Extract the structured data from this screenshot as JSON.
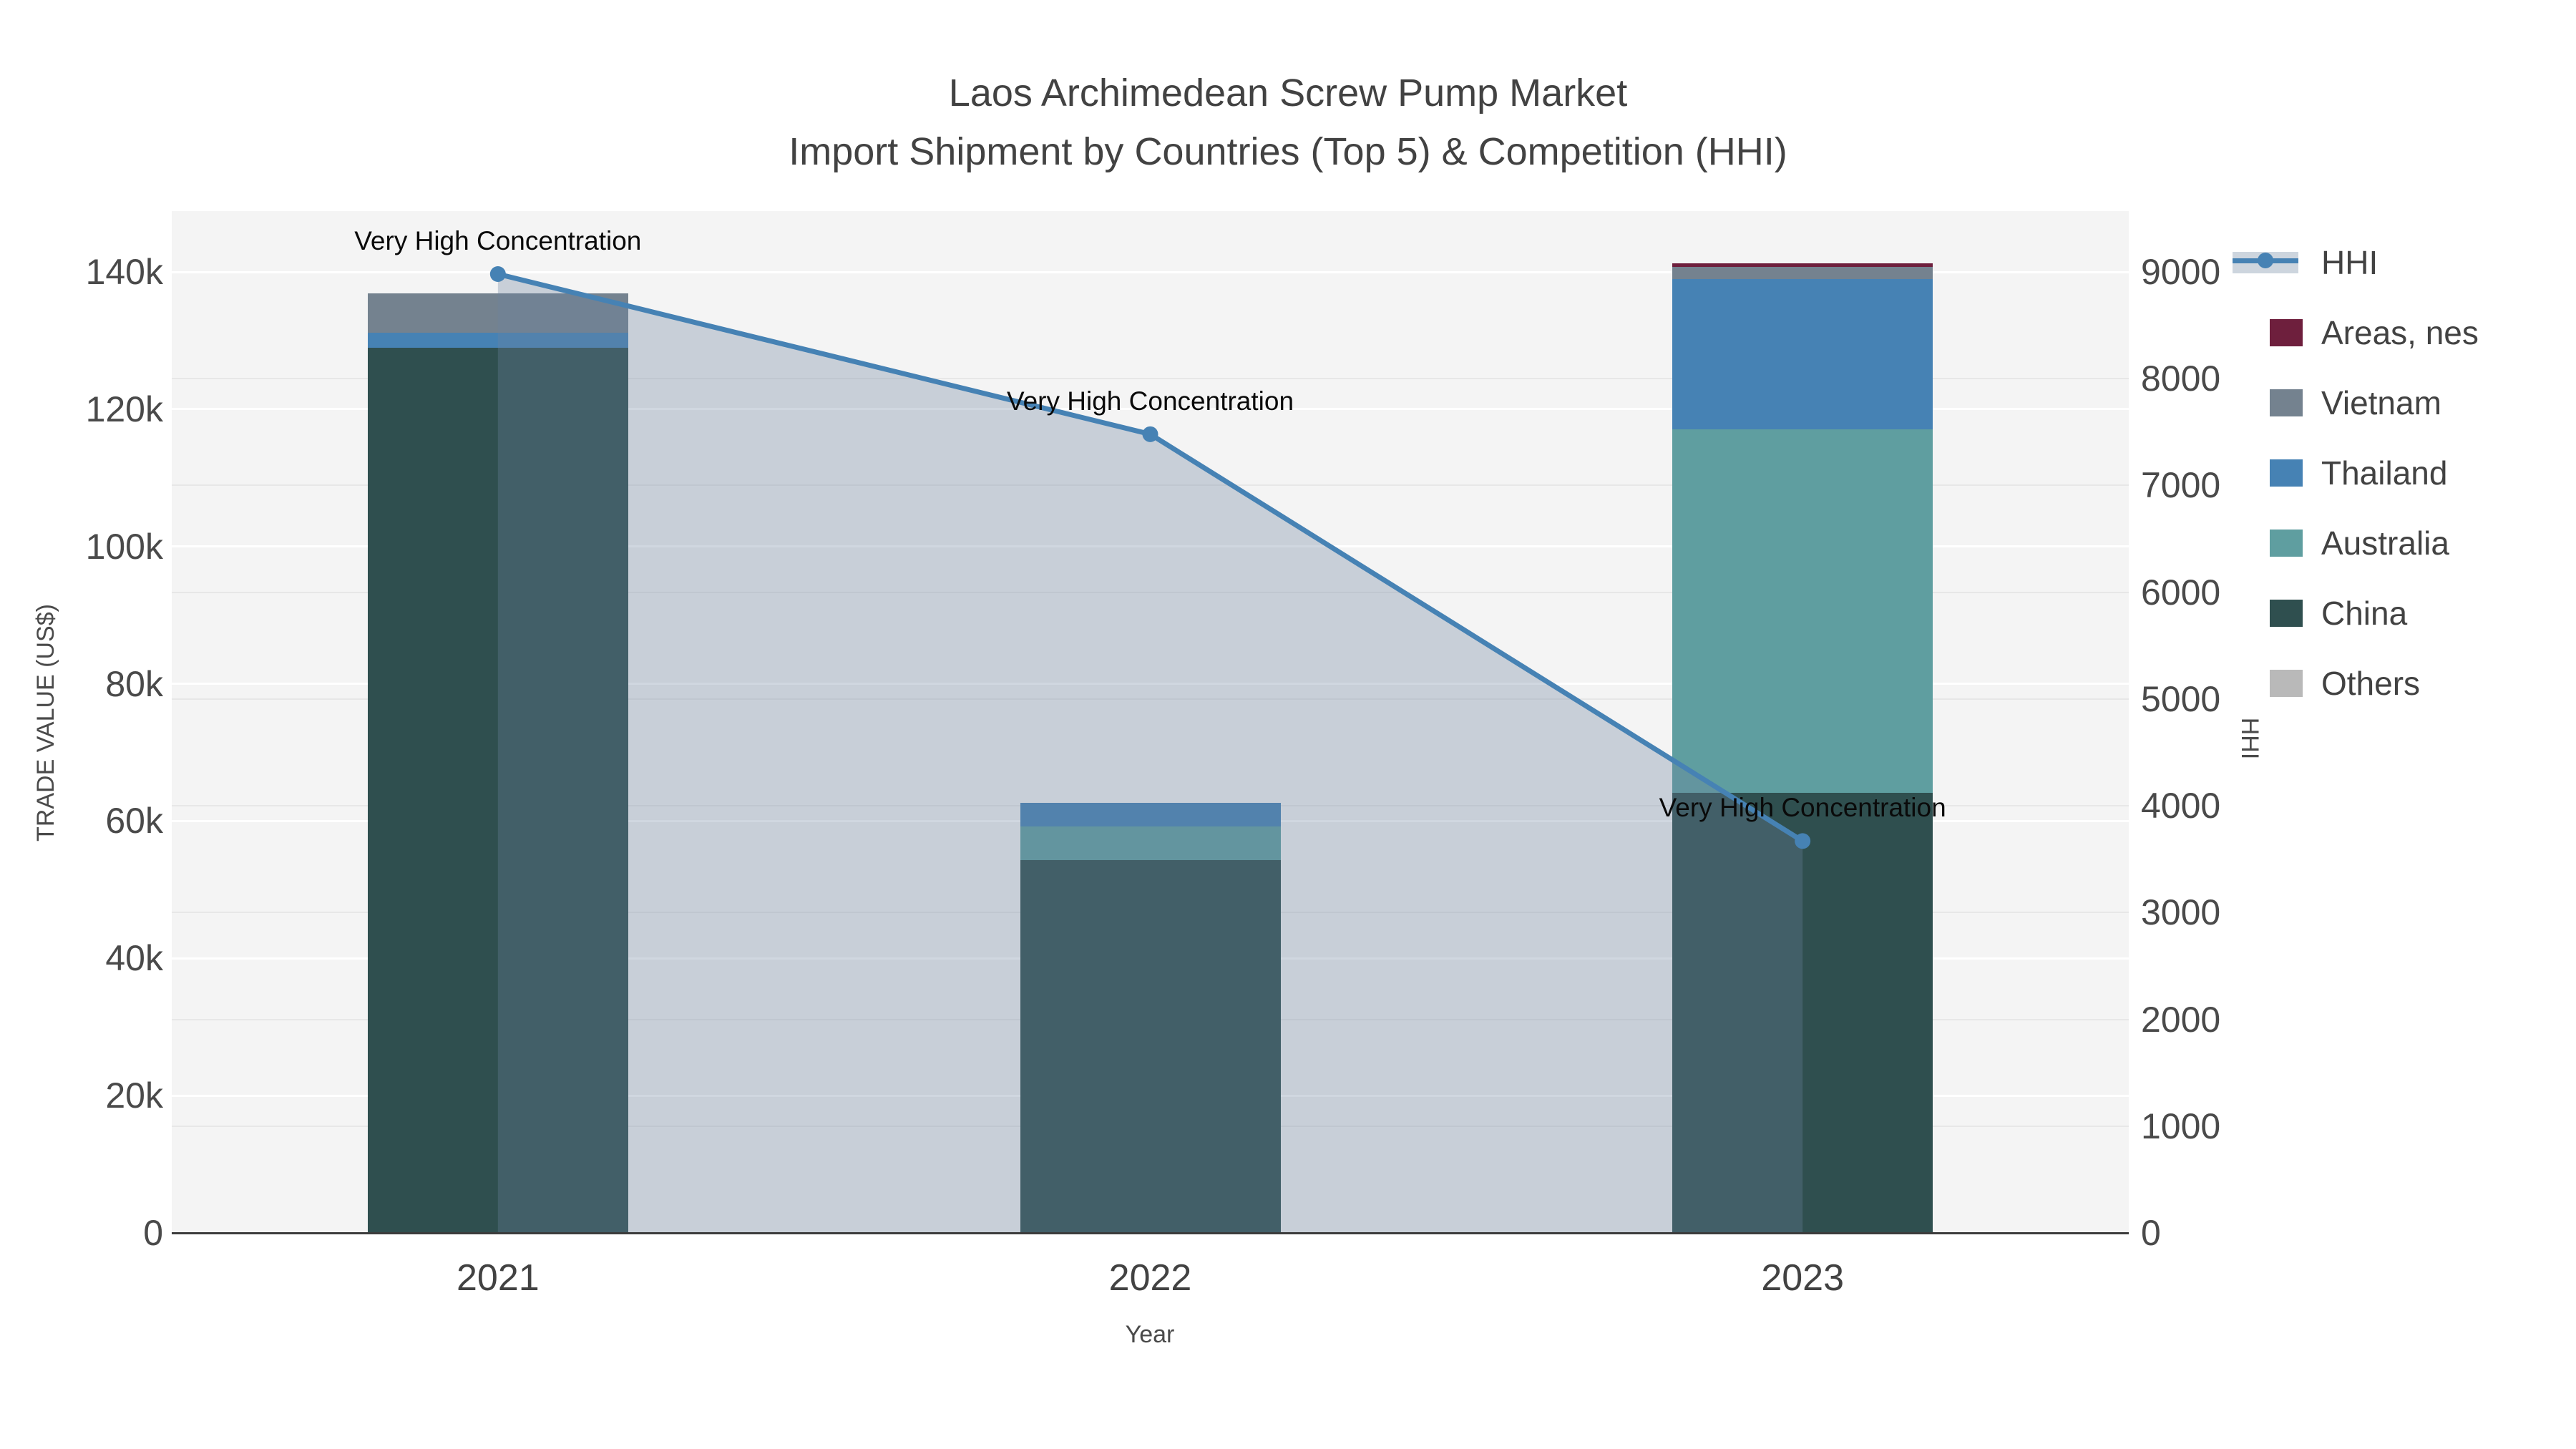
{
  "title": {
    "line1": "Laos Archimedean Screw Pump Market",
    "line2": "Import Shipment by Countries (Top 5) & Competition (HHI)"
  },
  "axes": {
    "x": {
      "title": "Year"
    },
    "y_left": {
      "title": "TRADE VALUE (US$)"
    },
    "y_right": {
      "title": "HHI"
    }
  },
  "legend": {
    "items": [
      {
        "label": "HHI",
        "type": "line",
        "color": "#4682B4",
        "band": "#CDD5DE"
      },
      {
        "label": "Areas, nes",
        "type": "square",
        "color": "#6E1F3D"
      },
      {
        "label": "Vietnam",
        "type": "square",
        "color": "#74828F"
      },
      {
        "label": "Thailand",
        "type": "square",
        "color": "#4682B4"
      },
      {
        "label": "Australia",
        "type": "square",
        "color": "#5F9EA0"
      },
      {
        "label": "China",
        "type": "square",
        "color": "#2F4F4F"
      },
      {
        "label": "Others",
        "type": "square",
        "color": "#B9B9B9"
      }
    ]
  },
  "chart_data": {
    "type": "combo-stacked-bar-line",
    "title": "Laos Archimedean Screw Pump Market",
    "subtitle": "Import Shipment by Countries (Top 5) & Competition (HHI)",
    "categories": [
      "2021",
      "2022",
      "2023"
    ],
    "xlabel": "Year",
    "ylabel_left": "TRADE VALUE (US$)",
    "ylabel_right": "HHI",
    "series": [
      {
        "name": "China",
        "color": "#2F4F4F",
        "values": [
          128900,
          54300,
          64100
        ]
      },
      {
        "name": "Australia",
        "color": "#5F9EA0",
        "values": [
          0,
          4900,
          53000
        ]
      },
      {
        "name": "Thailand",
        "color": "#4682B4",
        "values": [
          2200,
          3500,
          21900
        ]
      },
      {
        "name": "Vietnam",
        "color": "#74828F",
        "values": [
          5800,
          0,
          1700
        ]
      },
      {
        "name": "Areas, nes",
        "color": "#6E1F3D",
        "values": [
          0,
          0,
          500
        ]
      },
      {
        "name": "Others",
        "color": "#B9B9B9",
        "values": [
          0,
          0,
          0
        ]
      }
    ],
    "line_series": {
      "name": "HHI",
      "color": "#4682B4",
      "fill": "rgba(110,132,160,0.32)",
      "values": [
        8980,
        7480,
        3670
      ]
    },
    "point_annotations": [
      "Very High Concentration",
      "Very High Concentration",
      "Very High Concentration"
    ],
    "y_left": {
      "ticks": [
        0,
        20000,
        40000,
        60000,
        80000,
        100000,
        120000,
        140000
      ],
      "tick_labels": [
        "0",
        "20k",
        "40k",
        "60k",
        "80k",
        "100k",
        "120k",
        "140k"
      ],
      "range": [
        0,
        148900
      ]
    },
    "y_right": {
      "ticks": [
        0,
        1000,
        2000,
        3000,
        4000,
        5000,
        6000,
        7000,
        8000,
        9000
      ],
      "tick_labels": [
        "0",
        "1000",
        "2000",
        "3000",
        "4000",
        "5000",
        "6000",
        "7000",
        "8000",
        "9000"
      ],
      "range": [
        0,
        9570
      ]
    },
    "grid": true,
    "legend_position": "right"
  },
  "colors": {
    "plot_bg": "#F4F4F4",
    "grid_left": "#FFFFFF",
    "grid_right": "#E7E7E7",
    "axis_line": "#3C3C3C",
    "text_dark": "#424242",
    "text_mid": "#4A4A4A",
    "annotation": "#0A0A0A"
  }
}
